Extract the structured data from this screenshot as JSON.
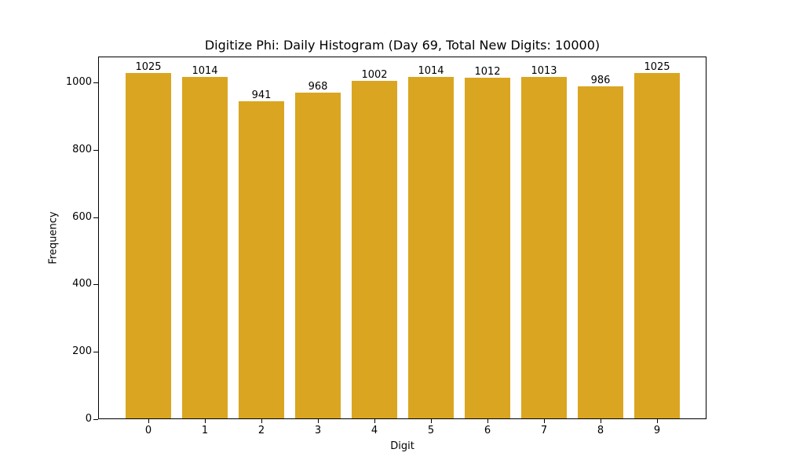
{
  "chart_data": {
    "type": "bar",
    "title": "Digitize Phi: Daily Histogram (Day 69, Total New Digits: 10000)",
    "xlabel": "Digit",
    "ylabel": "Frequency",
    "categories": [
      "0",
      "1",
      "2",
      "3",
      "4",
      "5",
      "6",
      "7",
      "8",
      "9"
    ],
    "values": [
      1025,
      1014,
      941,
      968,
      1002,
      1014,
      1012,
      1013,
      986,
      1025
    ],
    "data_labels": [
      "1025",
      "1014",
      "941",
      "968",
      "1002",
      "1014",
      "1012",
      "1013",
      "986",
      "1025"
    ],
    "yticks": [
      "0",
      "200",
      "400",
      "600",
      "800",
      "1000"
    ],
    "ylim": [
      0,
      1076
    ],
    "bar_color": "#DAA520",
    "grid": false,
    "legend": null
  }
}
